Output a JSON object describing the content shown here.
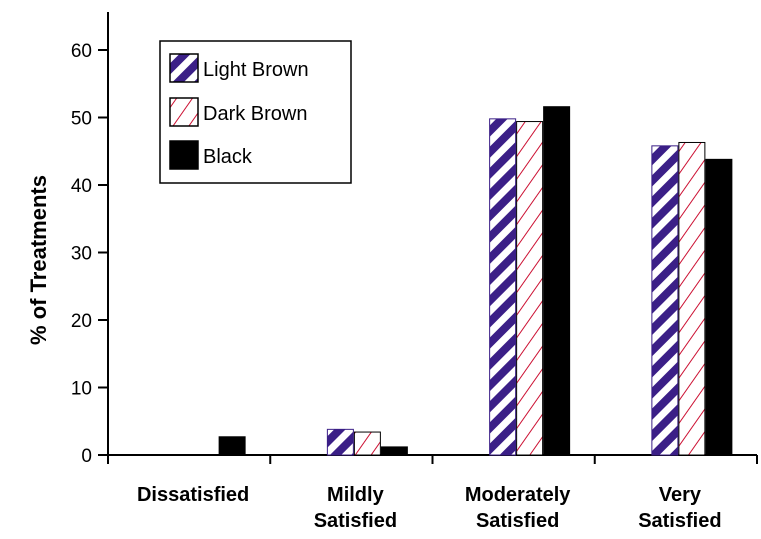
{
  "chart_data": {
    "type": "bar",
    "ylabel": "% of Treatments",
    "xlabel": "",
    "ylim": [
      0,
      65
    ],
    "yticks": [
      0,
      10,
      20,
      30,
      40,
      50,
      60
    ],
    "categories": [
      [
        "Dissatisfied"
      ],
      [
        "Mildly",
        "Satisfied"
      ],
      [
        "Moderately",
        "Satisfied"
      ],
      [
        "Very",
        "Satisfied"
      ]
    ],
    "series": [
      {
        "name": "Light Brown",
        "values": [
          0,
          3.8,
          49.8,
          45.8
        ],
        "pattern": "purple-diagonal-stripes"
      },
      {
        "name": "Dark Brown",
        "values": [
          0,
          3.4,
          49.4,
          46.3
        ],
        "pattern": "red-hatch"
      },
      {
        "name": "Black",
        "values": [
          2.7,
          1.2,
          51.6,
          43.8
        ],
        "pattern": "solid-black"
      }
    ],
    "legend_position": "top-left",
    "grid": false,
    "colors": {
      "light_brown": "#3b1f87",
      "dark_brown": "#cc1133",
      "black": "#000000"
    }
  }
}
